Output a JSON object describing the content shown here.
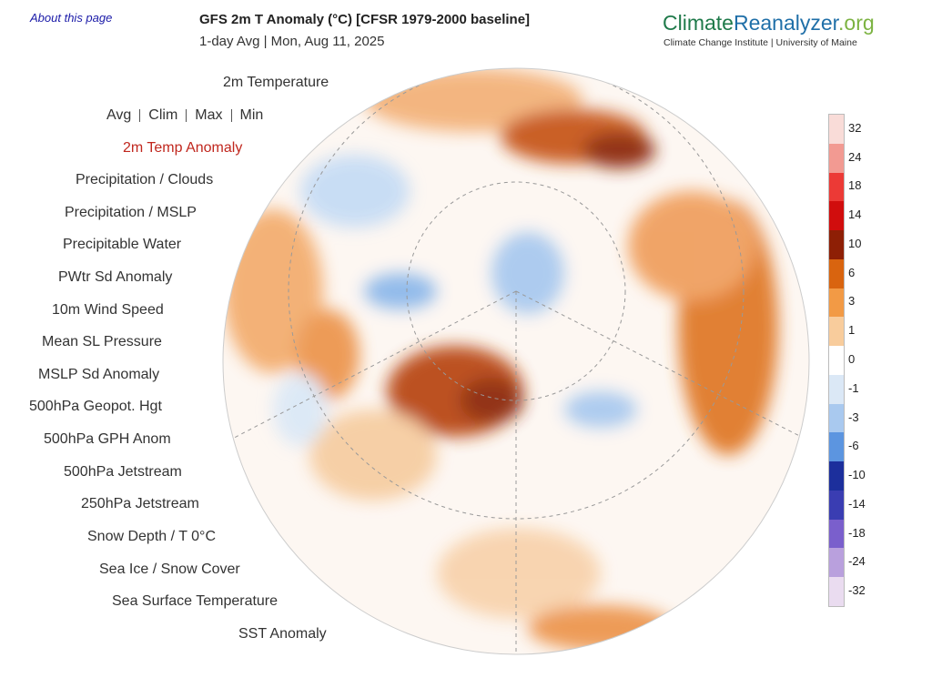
{
  "header": {
    "about_link": "About this page",
    "title": "GFS 2m T Anomaly (°C) [CFSR 1979-2000 baseline]",
    "subtitle": "1-day Avg | Mon, Aug 11, 2025",
    "logo": {
      "part1": "Climate",
      "part2": "Reanalyzer",
      "part3": ".org"
    },
    "tagline": "Climate Change Institute | University of Maine"
  },
  "menu": {
    "top": "2m Temperature",
    "stat_options": [
      "Avg",
      "Clim",
      "Max",
      "Min"
    ],
    "items": [
      "2m Temp Anomaly",
      "Precipitation / Clouds",
      "Precipitation / MSLP",
      "Precipitable Water",
      "PWtr Sd Anomaly",
      "10m Wind Speed",
      "Mean SL Pressure",
      "MSLP Sd Anomaly",
      "500hPa Geopot. Hgt",
      "500hPa GPH Anom",
      "500hPa Jetstream",
      "250hPa Jetstream",
      "Snow Depth / T 0°C",
      "Sea Ice / Snow Cover",
      "Sea Surface Temperature",
      "SST Anomaly"
    ],
    "active_item": 0
  },
  "legend": {
    "labels": [
      32,
      24,
      18,
      14,
      10,
      6,
      3,
      1,
      0,
      -1,
      -3,
      -6,
      -10,
      -14,
      -18,
      -24,
      -32
    ],
    "colors": [
      "#f9dcd8",
      "#f29a92",
      "#ec3a36",
      "#d10d0d",
      "#8e1f05",
      "#d9640f",
      "#f29a45",
      "#f8cc9c",
      "#ffffff",
      "#dbe8f6",
      "#a9c9ef",
      "#5c95e0",
      "#1c2f9c",
      "#3a3db2",
      "#7a5fcc",
      "#b9a0dd",
      "#eadcf0"
    ]
  }
}
